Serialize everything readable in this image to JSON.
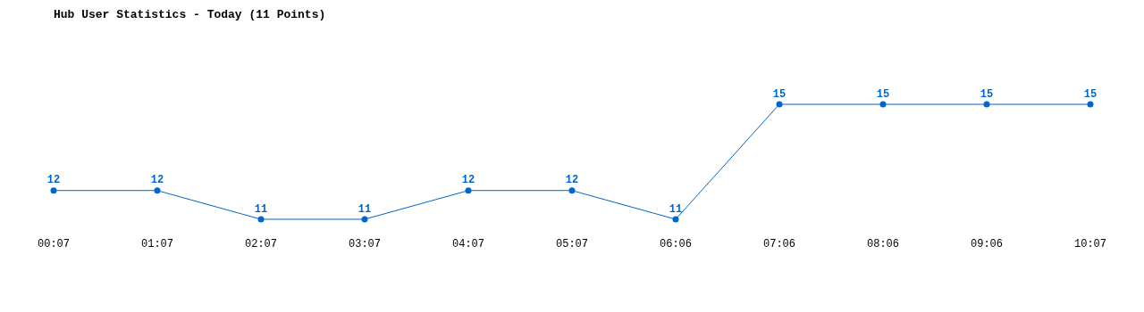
{
  "chart_data": {
    "type": "line",
    "title": "Hub User Statistics - Today (11 Points)",
    "categories": [
      "00:07",
      "01:07",
      "02:07",
      "03:07",
      "04:07",
      "05:07",
      "06:06",
      "07:06",
      "08:06",
      "09:06",
      "10:07"
    ],
    "series": [
      {
        "color": "#0066cc",
        "values": [
          12,
          12,
          11,
          11,
          12,
          12,
          11,
          15,
          15,
          15,
          15
        ]
      }
    ],
    "tick_labels": "x",
    "data_labels": true,
    "marker": "circle",
    "line_style": "solid"
  }
}
